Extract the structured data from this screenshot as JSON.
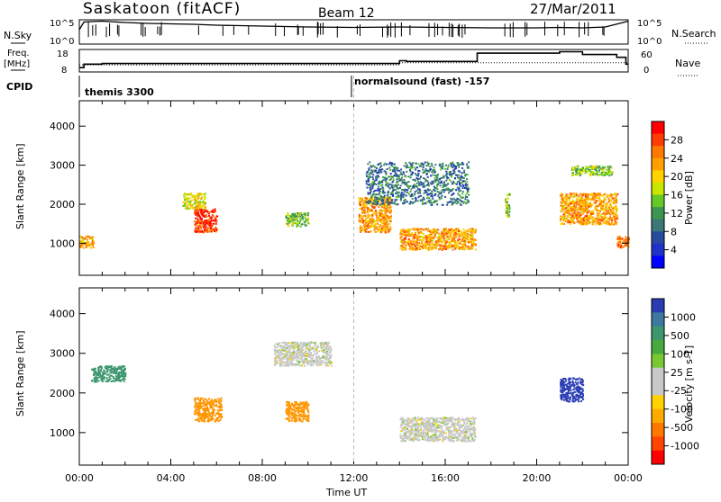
{
  "header": {
    "title": "Saskatoon (fitACF)",
    "beam": "Beam 12",
    "date": "27/Mar/2011"
  },
  "top_panels": {
    "nsky_label": "N.Sky",
    "nsky_ticks": [
      "10^5",
      "10^0"
    ],
    "nsearch_ticks": [
      "10^5",
      "10^0"
    ],
    "nsearch_label": "N.Search",
    "freq_label_1": "Freq.",
    "freq_label_2": "[MHz]",
    "freq_ticks": [
      "18",
      "8"
    ],
    "nave_ticks": [
      "60",
      "0"
    ],
    "nave_label": "Nave",
    "cpid_label": "CPID",
    "cpid_1": "themis 3300",
    "cpid_2": "normalsound (fast) -157"
  },
  "power_colorbar": {
    "label": "Power [dB]",
    "ticks": [
      "28",
      "24",
      "20",
      "16",
      "12",
      "8",
      "4"
    ],
    "colors": [
      "#ff0000",
      "#ff3c00",
      "#ff7800",
      "#ffa000",
      "#ffd200",
      "#c8e600",
      "#64c828",
      "#3c9650",
      "#3c7878",
      "#284ba0",
      "#1e32c8",
      "#0000ff"
    ]
  },
  "velocity_colorbar": {
    "label": "Velocity [m s-1]",
    "ticks": [
      "1000",
      "500",
      "100",
      "25",
      "-25",
      "-100",
      "-500",
      "-1000"
    ],
    "colors": [
      "#2a3cb4",
      "#3c78a0",
      "#3c966e",
      "#46aa3c",
      "#78c832",
      "#c8c8c8",
      "#c8c8c8",
      "#ffd200",
      "#ffaa00",
      "#ff7800",
      "#ff4600",
      "#ff0000"
    ]
  },
  "chart_data": [
    {
      "type": "line",
      "title": "N.Sky / N.Search",
      "x_range_hours": [
        0,
        24
      ],
      "series": [
        {
          "name": "N.Sky",
          "x": [
            0.0,
            0.2,
            0.5,
            1,
            2,
            3,
            4,
            5,
            6,
            8,
            10,
            12,
            14,
            16,
            18,
            20,
            21,
            22,
            23,
            23.7,
            24
          ],
          "y_log10": [
            3.0,
            4.7,
            4.8,
            4.9,
            4.6,
            4.4,
            4.3,
            4.2,
            4.0,
            3.8,
            3.6,
            3.5,
            3.6,
            3.5,
            3.4,
            3.4,
            3.5,
            3.4,
            3.6,
            4.5,
            4.9
          ]
        }
      ]
    },
    {
      "type": "line",
      "title": "Freq. / Nave",
      "series": [
        {
          "name": "Freq. [MHz]",
          "x": [
            0,
            14,
            14.01,
            24
          ],
          "y": [
            11,
            11,
            12,
            12
          ]
        },
        {
          "name": "Nave",
          "x": [
            0,
            0.2,
            1,
            12,
            13.9,
            14.0,
            14.3,
            17.3,
            17.4,
            20.9,
            21.0,
            22.0,
            22.5,
            23.5,
            23.9,
            24
          ],
          "y": [
            10,
            20,
            22,
            22,
            22,
            30,
            28,
            28,
            52,
            52,
            56,
            48,
            48,
            40,
            20,
            20
          ]
        }
      ]
    },
    {
      "type": "heatmap",
      "title": "Power [dB]",
      "xlabel": "Time UT",
      "ylabel": "Slant Range [km]",
      "x_ticks": [
        "00:00",
        "04:00",
        "08:00",
        "12:00",
        "16:00",
        "20:00",
        "00:00"
      ],
      "y_ticks": [
        1000,
        2000,
        3000,
        4000
      ],
      "y_range_km": [
        180,
        4650
      ],
      "regions_power_db": [
        {
          "t": [
            0.0,
            0.6
          ],
          "r": [
            900,
            1200
          ],
          "db": 22
        },
        {
          "t": [
            5.0,
            6.0
          ],
          "r": [
            1300,
            1900
          ],
          "db": 28
        },
        {
          "t": [
            4.5,
            5.5
          ],
          "r": [
            1900,
            2300
          ],
          "db": 18
        },
        {
          "t": [
            9.0,
            10.0
          ],
          "r": [
            1450,
            1800
          ],
          "db": 14
        },
        {
          "t": [
            12.2,
            13.6
          ],
          "r": [
            1300,
            2200
          ],
          "db": 22
        },
        {
          "t": [
            14.0,
            17.3
          ],
          "r": [
            850,
            1400
          ],
          "db": 22
        },
        {
          "t": [
            12.5,
            17.0
          ],
          "r": [
            2000,
            3100
          ],
          "db": 8
        },
        {
          "t": [
            21.0,
            23.5
          ],
          "r": [
            1500,
            2300
          ],
          "db": 22
        },
        {
          "t": [
            23.5,
            24.0
          ],
          "r": [
            900,
            1200
          ],
          "db": 24
        },
        {
          "t": [
            18.6,
            18.8
          ],
          "r": [
            1700,
            2300
          ],
          "db": 14
        },
        {
          "t": [
            21.5,
            23.3
          ],
          "r": [
            2750,
            3000
          ],
          "db": 14
        }
      ]
    },
    {
      "type": "heatmap",
      "title": "Velocity [m s-1]",
      "xlabel": "Time UT",
      "ylabel": "Slant Range [km]",
      "x_ticks": [
        "00:00",
        "04:00",
        "08:00",
        "12:00",
        "16:00",
        "20:00",
        "00:00"
      ],
      "y_ticks": [
        1000,
        2000,
        3000,
        4000
      ],
      "y_range_km": [
        180,
        4650
      ],
      "regions_velocity_ms": [
        {
          "t": [
            5.0,
            6.2
          ],
          "r": [
            1300,
            1900
          ],
          "v": -200
        },
        {
          "t": [
            9.0,
            10.0
          ],
          "r": [
            1300,
            1800
          ],
          "v": -150
        },
        {
          "t": [
            0.5,
            2.0
          ],
          "r": [
            2300,
            2700
          ],
          "v": 150
        },
        {
          "t": [
            14.0,
            17.3
          ],
          "r": [
            800,
            1400
          ],
          "v": 0
        },
        {
          "t": [
            21.0,
            22.0
          ],
          "r": [
            1800,
            2400
          ],
          "v": 600
        },
        {
          "t": [
            8.5,
            11.0
          ],
          "r": [
            2700,
            3300
          ],
          "v": 0
        }
      ]
    }
  ]
}
